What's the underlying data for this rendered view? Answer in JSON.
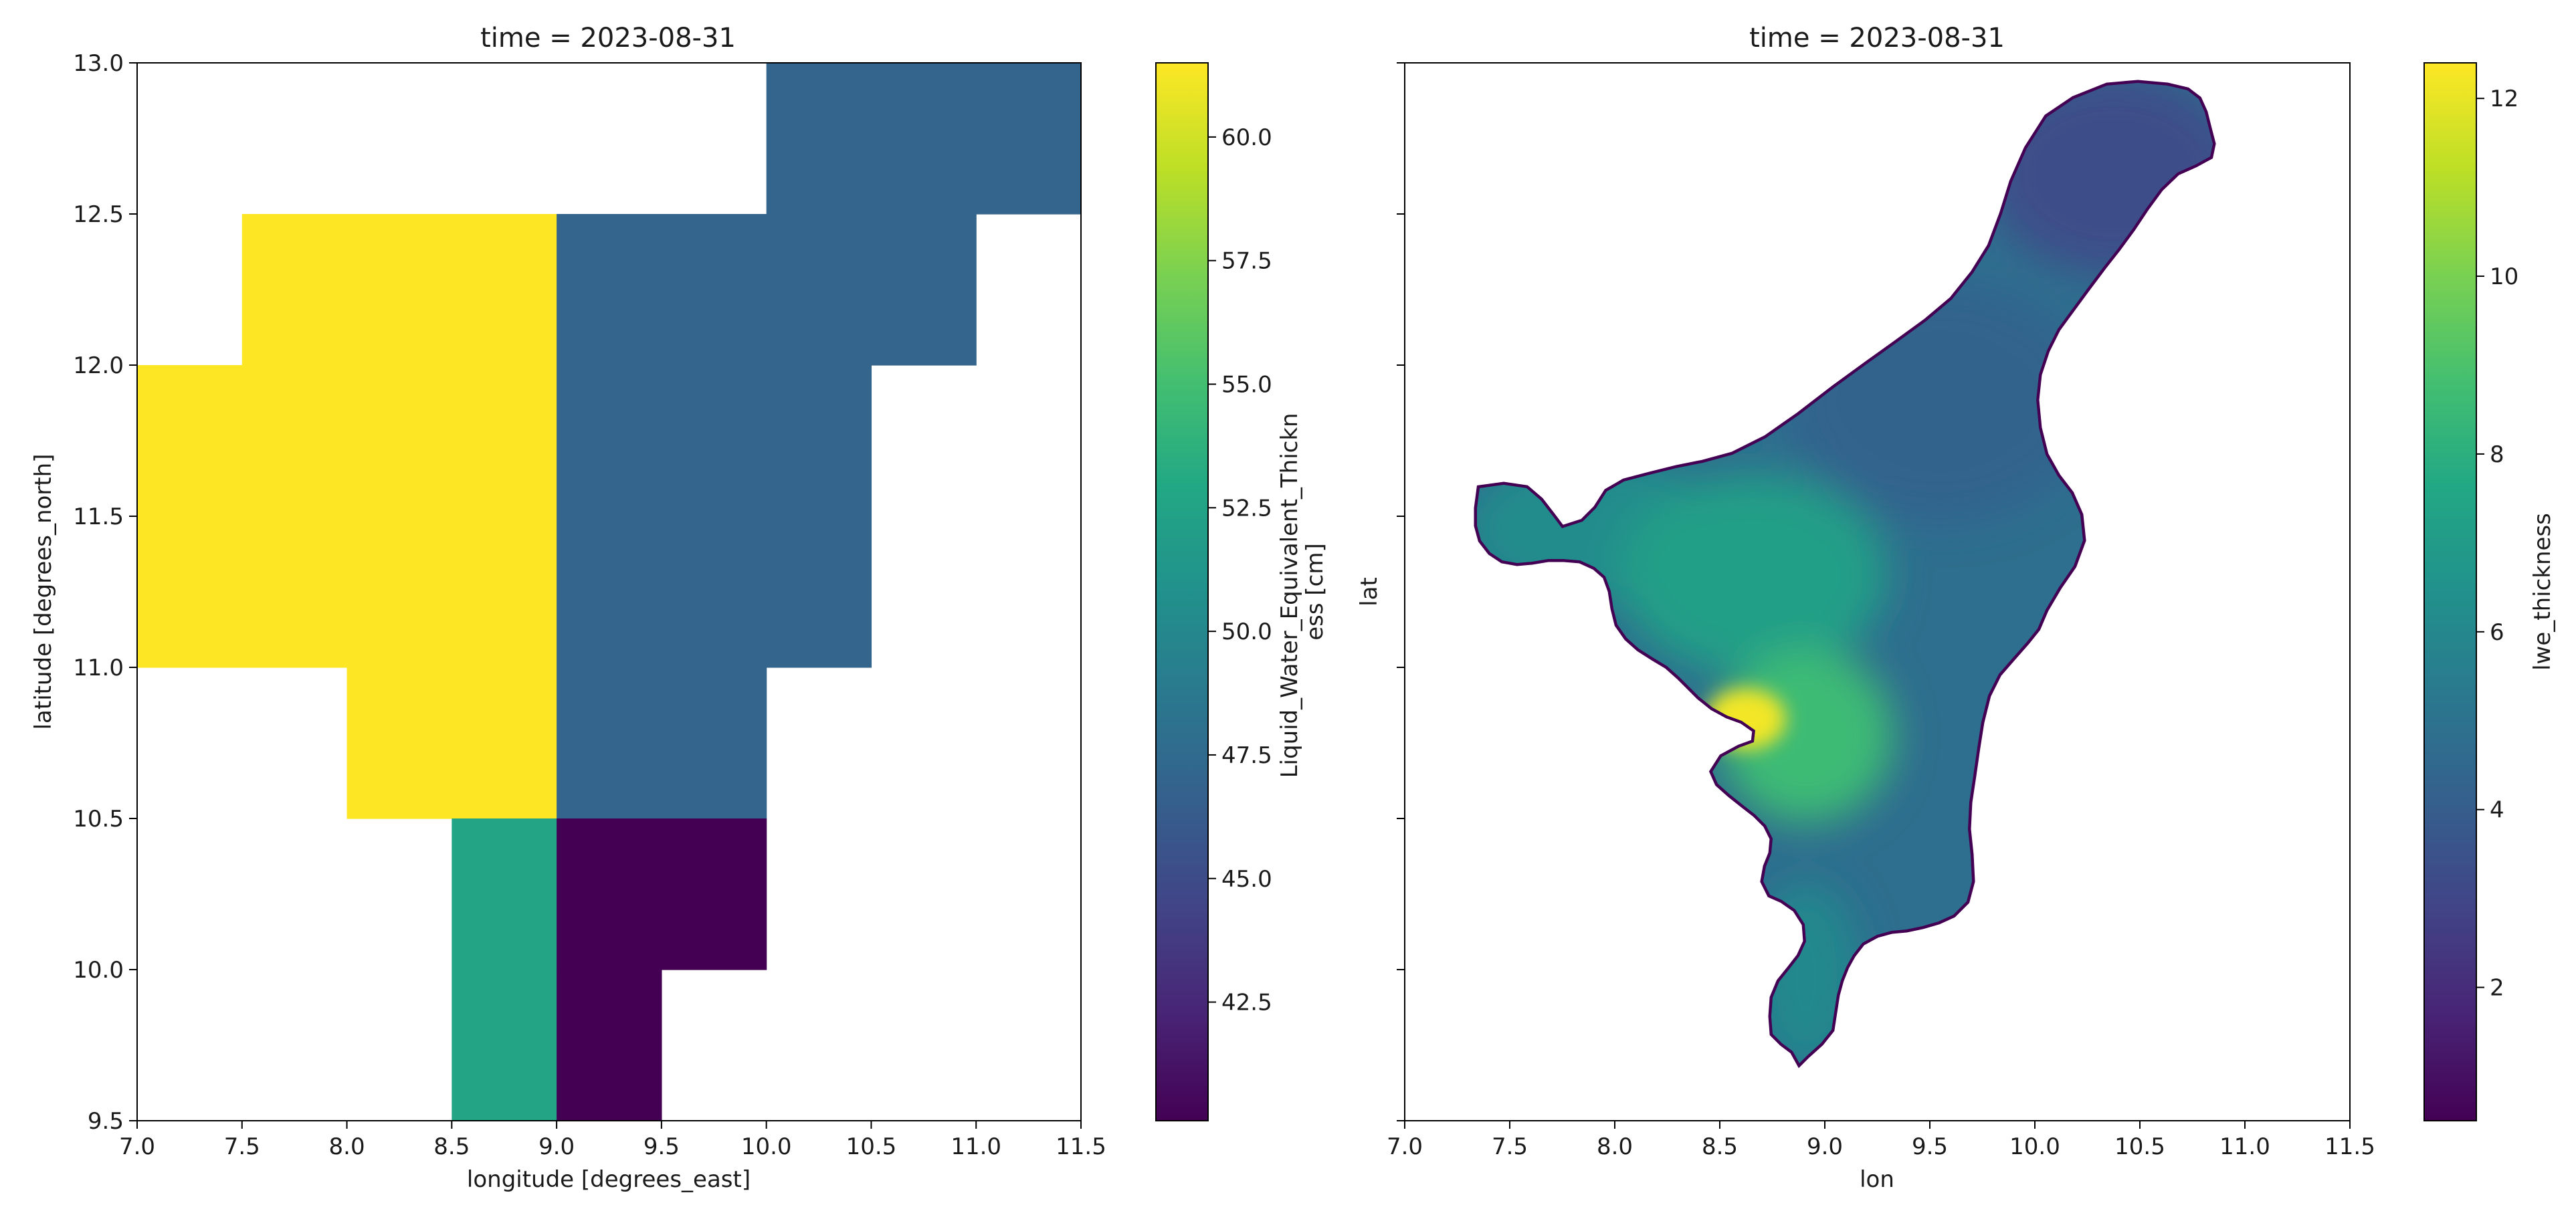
{
  "figure": {
    "panels": 2
  },
  "chart_data": [
    {
      "type": "heatmap",
      "title": "time = 2023-08-31",
      "xlabel": "longitude [degrees_east]",
      "ylabel": "latitude [degrees_north]",
      "xlim": [
        7.0,
        11.5
      ],
      "ylim": [
        9.5,
        13.0
      ],
      "xticks": [
        "7.0",
        "7.5",
        "8.0",
        "8.5",
        "9.0",
        "9.5",
        "10.0",
        "10.5",
        "11.0",
        "11.5"
      ],
      "yticks": [
        "9.5",
        "10.0",
        "10.5",
        "11.0",
        "11.5",
        "12.0",
        "12.5",
        "13.0"
      ],
      "colormap": "viridis",
      "colorbar": {
        "label_lines": [
          "Liquid_Water_Equivalent_Thickn",
          "ess [cm]"
        ],
        "range": [
          40.1,
          61.5
        ],
        "ticks": [
          "42.5",
          "45.0",
          "47.5",
          "50.0",
          "52.5",
          "55.0",
          "57.5",
          "60.0"
        ]
      },
      "grid": false,
      "cells": [
        {
          "lon": [
            10.0,
            11.5
          ],
          "lat": [
            12.5,
            13.0
          ],
          "value": 47.0
        },
        {
          "lon": [
            7.5,
            9.0
          ],
          "lat": [
            12.0,
            12.5
          ],
          "value": 61.5
        },
        {
          "lon": [
            9.0,
            11.0
          ],
          "lat": [
            12.0,
            12.5
          ],
          "value": 47.0
        },
        {
          "lon": [
            7.0,
            9.0
          ],
          "lat": [
            11.0,
            12.0
          ],
          "value": 61.5
        },
        {
          "lon": [
            9.0,
            10.5
          ],
          "lat": [
            11.0,
            12.0
          ],
          "value": 47.0
        },
        {
          "lon": [
            8.0,
            9.0
          ],
          "lat": [
            10.5,
            11.0
          ],
          "value": 61.5
        },
        {
          "lon": [
            9.0,
            10.0
          ],
          "lat": [
            10.5,
            11.0
          ],
          "value": 47.0
        },
        {
          "lon": [
            8.5,
            9.0
          ],
          "lat": [
            9.5,
            10.5
          ],
          "value": 52.6
        },
        {
          "lon": [
            9.0,
            10.0
          ],
          "lat": [
            10.0,
            10.5
          ],
          "value": 40.1
        },
        {
          "lon": [
            9.0,
            9.5
          ],
          "lat": [
            9.5,
            10.0
          ],
          "value": 40.1
        }
      ]
    },
    {
      "type": "heatmap",
      "title": "time = 2023-08-31",
      "xlabel": "lon",
      "ylabel": "lat",
      "xlim": [
        7.0,
        11.5
      ],
      "xticks": [
        "7.0",
        "7.5",
        "8.0",
        "8.5",
        "9.0",
        "9.5",
        "10.0",
        "10.5",
        "11.0",
        "11.5"
      ],
      "yticks": [
        "",
        "",
        "",
        "",
        "",
        "",
        "",
        ""
      ],
      "colormap": "viridis",
      "colorbar": {
        "label_lines": [
          "lwe_thickness"
        ],
        "range": [
          0.5,
          12.4
        ],
        "ticks": [
          "2",
          "4",
          "6",
          "8",
          "10",
          "12"
        ]
      },
      "grid": false,
      "basin": {
        "background_value": 4.8,
        "regions": [
          {
            "note": "northeast arm",
            "value": 3.3
          },
          {
            "note": "north-central",
            "value": 4.3
          },
          {
            "note": "west lobe",
            "value": 6.2
          },
          {
            "note": "central",
            "value": 7.2
          },
          {
            "note": "south-central",
            "value": 8.6
          },
          {
            "note": "hotspot",
            "value": 12.2
          },
          {
            "note": "southern tail",
            "value": 6.0
          }
        ]
      }
    }
  ]
}
